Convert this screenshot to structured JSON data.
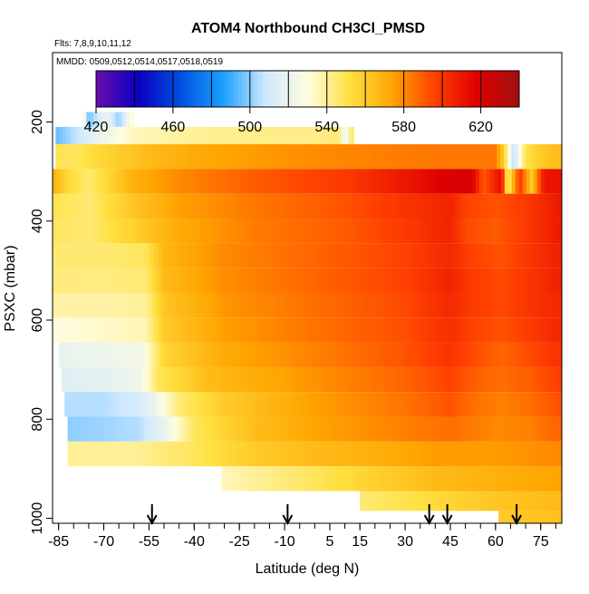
{
  "chart_data": {
    "type": "heatmap",
    "title": "ATOM4 Northbound CH3Cl_PMSD",
    "subtitle_flights": "Flts: 7,8,9,10,11,12",
    "subtitle_dates": "MMDD: 0509,0512,0514,0517,0518,0519",
    "xlabel": "Latitude (deg N)",
    "ylabel": "PSXC (mbar)",
    "x_ticks": [
      "-85",
      "-70",
      "-55",
      "-40",
      "-25",
      "-10",
      "5",
      "15",
      "30",
      "45",
      "60",
      "75"
    ],
    "x_tick_values": [
      -85,
      -70,
      -55,
      -40,
      -25,
      -10,
      5,
      15,
      30,
      45,
      60,
      75
    ],
    "y_ticks": [
      "200",
      "400",
      "600",
      "800",
      "1000"
    ],
    "y_tick_values": [
      200,
      400,
      600,
      800,
      1000
    ],
    "xlim": [
      -87,
      82
    ],
    "ylim": [
      1010,
      60
    ],
    "colorbar": {
      "ticks": [
        "420",
        "460",
        "500",
        "540",
        "580",
        "620"
      ],
      "tick_values": [
        420,
        460,
        500,
        540,
        580,
        620
      ],
      "range": [
        420,
        640
      ],
      "colors": [
        "#6a0dad",
        "#0a00c0",
        "#0050e0",
        "#1aa0ff",
        "#cfe8ff",
        "#fffde0",
        "#ffe040",
        "#ffa500",
        "#ff4000",
        "#e00000",
        "#a01010"
      ]
    },
    "arrows_latitude": [
      -54,
      -9,
      38,
      44,
      67
    ],
    "rows": [
      {
        "p": 200,
        "x0": -77,
        "x1": -60,
        "anchors": [
          [
            -77,
            540
          ],
          [
            -75,
            495
          ],
          [
            -72,
            510
          ],
          [
            -69,
            520
          ],
          [
            -65,
            500
          ],
          [
            -61,
            530
          ]
        ]
      },
      {
        "p": 220,
        "x0": -86,
        "x1": 13,
        "anchors": [
          [
            -86,
            495
          ],
          [
            -80,
            505
          ],
          [
            -72,
            520
          ],
          [
            -60,
            535
          ],
          [
            -40,
            540
          ],
          [
            -20,
            542
          ],
          [
            0,
            542
          ],
          [
            8,
            545
          ],
          [
            10,
            515
          ],
          [
            12,
            545
          ]
        ]
      },
      {
        "p": 270,
        "x0": -86,
        "x1": 82,
        "anchors": [
          [
            -86,
            550
          ],
          [
            -80,
            548
          ],
          [
            -70,
            556
          ],
          [
            -55,
            566
          ],
          [
            -40,
            572
          ],
          [
            -10,
            578
          ],
          [
            20,
            582
          ],
          [
            40,
            584
          ],
          [
            60,
            584
          ],
          [
            63,
            555
          ],
          [
            66,
            505
          ],
          [
            70,
            550
          ],
          [
            75,
            560
          ],
          [
            80,
            565
          ]
        ]
      },
      {
        "p": 320,
        "x0": -87,
        "x1": 82,
        "anchors": [
          [
            -87,
            570
          ],
          [
            -82,
            555
          ],
          [
            -75,
            545
          ],
          [
            -60,
            570
          ],
          [
            -45,
            580
          ],
          [
            -20,
            590
          ],
          [
            10,
            598
          ],
          [
            30,
            610
          ],
          [
            45,
            620
          ],
          [
            52,
            622
          ],
          [
            56,
            590
          ],
          [
            62,
            615
          ],
          [
            64,
            540
          ],
          [
            68,
            600
          ],
          [
            72,
            560
          ],
          [
            76,
            610
          ],
          [
            80,
            612
          ]
        ]
      },
      {
        "p": 370,
        "x0": -87,
        "x1": 82,
        "anchors": [
          [
            -87,
            550
          ],
          [
            -75,
            545
          ],
          [
            -60,
            562
          ],
          [
            -45,
            575
          ],
          [
            -20,
            584
          ],
          [
            10,
            592
          ],
          [
            30,
            600
          ],
          [
            45,
            606
          ],
          [
            50,
            596
          ],
          [
            60,
            592
          ],
          [
            70,
            598
          ],
          [
            80,
            608
          ]
        ]
      },
      {
        "p": 420,
        "x0": -87,
        "x1": 82,
        "anchors": [
          [
            -87,
            548
          ],
          [
            -75,
            545
          ],
          [
            -60,
            558
          ],
          [
            -45,
            572
          ],
          [
            -20,
            583
          ],
          [
            10,
            590
          ],
          [
            30,
            598
          ],
          [
            45,
            606
          ],
          [
            50,
            594
          ],
          [
            60,
            590
          ],
          [
            70,
            598
          ],
          [
            80,
            608
          ]
        ]
      },
      {
        "p": 470,
        "x0": -87,
        "x1": 82,
        "anchors": [
          [
            -87,
            545
          ],
          [
            -70,
            545
          ],
          [
            -56,
            548
          ],
          [
            -50,
            568
          ],
          [
            -30,
            580
          ],
          [
            0,
            588
          ],
          [
            30,
            596
          ],
          [
            45,
            604
          ],
          [
            52,
            596
          ],
          [
            62,
            592
          ],
          [
            72,
            600
          ],
          [
            80,
            606
          ]
        ]
      },
      {
        "p": 520,
        "x0": -87,
        "x1": 82,
        "anchors": [
          [
            -87,
            544
          ],
          [
            -70,
            543
          ],
          [
            -56,
            545
          ],
          [
            -50,
            566
          ],
          [
            -30,
            579
          ],
          [
            0,
            588
          ],
          [
            30,
            596
          ],
          [
            45,
            606
          ],
          [
            52,
            598
          ],
          [
            62,
            594
          ],
          [
            72,
            600
          ],
          [
            80,
            606
          ]
        ]
      },
      {
        "p": 570,
        "x0": -87,
        "x1": 82,
        "anchors": [
          [
            -87,
            538
          ],
          [
            -70,
            538
          ],
          [
            -56,
            540
          ],
          [
            -50,
            562
          ],
          [
            -30,
            577
          ],
          [
            0,
            586
          ],
          [
            30,
            594
          ],
          [
            45,
            604
          ],
          [
            52,
            598
          ],
          [
            62,
            594
          ],
          [
            72,
            600
          ],
          [
            80,
            604
          ]
        ]
      },
      {
        "p": 620,
        "x0": -87,
        "x1": 82,
        "anchors": [
          [
            -87,
            530
          ],
          [
            -70,
            533
          ],
          [
            -56,
            536
          ],
          [
            -50,
            560
          ],
          [
            -30,
            575
          ],
          [
            0,
            585
          ],
          [
            30,
            593
          ],
          [
            45,
            602
          ],
          [
            52,
            596
          ],
          [
            62,
            592
          ],
          [
            72,
            598
          ],
          [
            80,
            604
          ]
        ]
      },
      {
        "p": 670,
        "x0": -85,
        "x1": 82,
        "anchors": [
          [
            -85,
            520
          ],
          [
            -70,
            522
          ],
          [
            -57,
            525
          ],
          [
            -50,
            556
          ],
          [
            -30,
            572
          ],
          [
            0,
            582
          ],
          [
            30,
            592
          ],
          [
            45,
            600
          ],
          [
            52,
            594
          ],
          [
            62,
            588
          ],
          [
            72,
            594
          ],
          [
            80,
            600
          ]
        ]
      },
      {
        "p": 720,
        "x0": -84,
        "x1": 82,
        "anchors": [
          [
            -84,
            515
          ],
          [
            -70,
            518
          ],
          [
            -58,
            522
          ],
          [
            -52,
            548
          ],
          [
            -35,
            566
          ],
          [
            0,
            578
          ],
          [
            30,
            588
          ],
          [
            45,
            596
          ],
          [
            52,
            590
          ],
          [
            62,
            586
          ],
          [
            72,
            590
          ],
          [
            80,
            596
          ]
        ]
      },
      {
        "p": 770,
        "x0": -83,
        "x1": 82,
        "anchors": [
          [
            -83,
            505
          ],
          [
            -70,
            505
          ],
          [
            -60,
            510
          ],
          [
            -54,
            518
          ],
          [
            -45,
            545
          ],
          [
            -30,
            560
          ],
          [
            0,
            575
          ],
          [
            30,
            585
          ],
          [
            45,
            592
          ],
          [
            52,
            586
          ],
          [
            62,
            582
          ],
          [
            72,
            586
          ],
          [
            80,
            592
          ]
        ]
      },
      {
        "p": 820,
        "x0": -82,
        "x1": 82,
        "anchors": [
          [
            -82,
            500
          ],
          [
            -70,
            502
          ],
          [
            -58,
            505
          ],
          [
            -50,
            520
          ],
          [
            -40,
            548
          ],
          [
            -20,
            565
          ],
          [
            0,
            574
          ],
          [
            30,
            582
          ],
          [
            45,
            586
          ],
          [
            60,
            580
          ],
          [
            72,
            582
          ],
          [
            80,
            588
          ]
        ]
      },
      {
        "p": 870,
        "x0": -82,
        "x1": 82,
        "anchors": [
          [
            -82,
            540
          ],
          [
            -60,
            540
          ],
          [
            -40,
            548
          ],
          [
            -20,
            560
          ],
          [
            0,
            566
          ],
          [
            20,
            570
          ],
          [
            40,
            576
          ],
          [
            60,
            576
          ],
          [
            80,
            580
          ]
        ]
      },
      {
        "p": 920,
        "x0": -31,
        "x1": 82,
        "anchors": [
          [
            -31,
            535
          ],
          [
            -20,
            540
          ],
          [
            0,
            548
          ],
          [
            20,
            558
          ],
          [
            40,
            566
          ],
          [
            60,
            570
          ],
          [
            80,
            574
          ]
        ]
      },
      {
        "p": 970,
        "x0": 15,
        "x1": 82,
        "anchors": [
          [
            15,
            545
          ],
          [
            30,
            550
          ],
          [
            50,
            558
          ],
          [
            60,
            562
          ],
          [
            80,
            566
          ]
        ]
      },
      {
        "p": 1000,
        "x0": 61,
        "x1": 82,
        "anchors": [
          [
            61,
            560
          ],
          [
            70,
            562
          ],
          [
            80,
            564
          ]
        ]
      }
    ]
  }
}
